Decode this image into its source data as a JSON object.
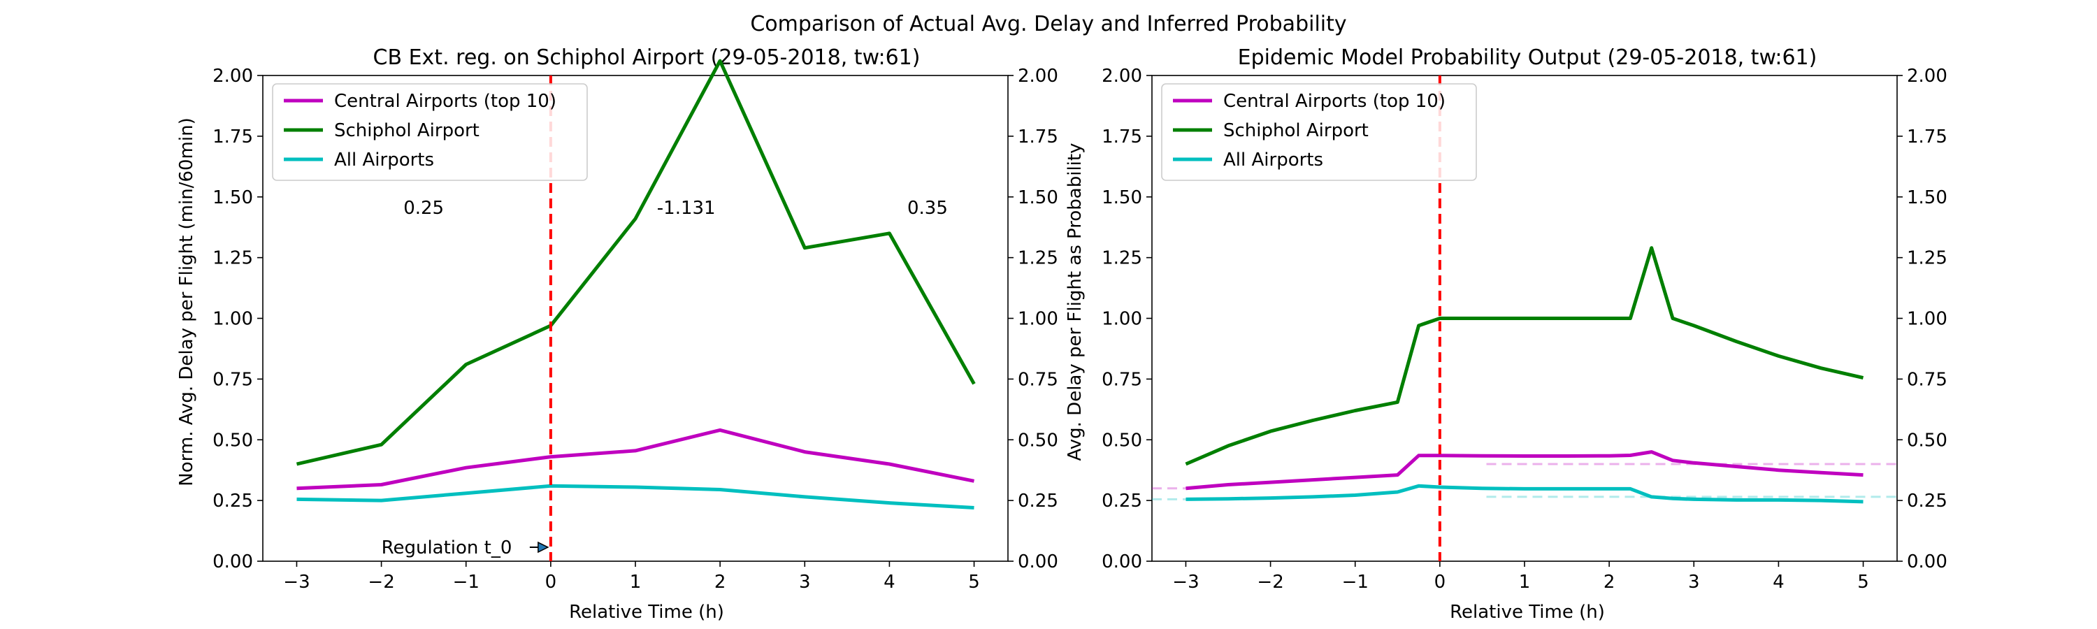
{
  "figure": {
    "suptitle": "Comparison of Actual Avg. Delay and Inferred Probability"
  },
  "colors": {
    "central": "#bf00bf",
    "schiphol": "#007f00",
    "all": "#00bfbf",
    "regulation": "#ff0000"
  },
  "chart_data": [
    {
      "type": "line",
      "title": "CB Ext. reg. on Schiphol Airport (29-05-2018, tw:61)",
      "xlabel": "Relative Time (h)",
      "ylabel": "Norm. Avg. Delay per Flight (min/60min)",
      "xlim": [
        -3.4,
        5.4
      ],
      "ylim": [
        0,
        2
      ],
      "xticks": [
        "−3",
        "−2",
        "−1",
        "0",
        "1",
        "2",
        "3",
        "4",
        "5"
      ],
      "yticks": [
        "0.00",
        "0.25",
        "0.50",
        "0.75",
        "1.00",
        "1.25",
        "1.50",
        "1.75",
        "2.00"
      ],
      "right_yticks": [
        "0.00",
        "0.25",
        "0.50",
        "0.75",
        "1.00",
        "1.25",
        "1.50",
        "1.75",
        "2.00"
      ],
      "grid": false,
      "legend_position": "top-left",
      "vline_x": 0,
      "annotations": [
        {
          "text": "0.25",
          "x": -1.5,
          "y": 1.43
        },
        {
          "text": "-1.131",
          "x": 1.6,
          "y": 1.43
        },
        {
          "text": "0.35",
          "x": 4.45,
          "y": 1.43
        }
      ],
      "arrow": {
        "text": "Regulation t_0",
        "x": 0,
        "y": 0.02,
        "text_x": -2.0,
        "text_y": 0.02
      },
      "series": [
        {
          "name": "Central Airports (top 10)",
          "key": "central",
          "x": [
            -3,
            -2,
            -1,
            0,
            1,
            2,
            3,
            4,
            5
          ],
          "values": [
            0.3,
            0.315,
            0.385,
            0.43,
            0.455,
            0.54,
            0.45,
            0.4,
            0.33
          ]
        },
        {
          "name": "Schiphol Airport",
          "key": "schiphol",
          "x": [
            -3,
            -2,
            -1,
            0,
            1,
            2,
            3,
            4,
            5
          ],
          "values": [
            0.4,
            0.48,
            0.81,
            0.97,
            1.41,
            2.06,
            1.29,
            1.35,
            0.73
          ]
        },
        {
          "name": "All Airports",
          "key": "all",
          "x": [
            -3,
            -2,
            -1,
            0,
            1,
            2,
            3,
            4,
            5
          ],
          "values": [
            0.255,
            0.25,
            0.28,
            0.31,
            0.305,
            0.295,
            0.265,
            0.24,
            0.22
          ]
        }
      ]
    },
    {
      "type": "line",
      "title": "Epidemic Model Probability Output (29-05-2018, tw:61)",
      "xlabel": "Relative Time (h)",
      "ylabel": "Avg. Delay per Flight as Probability",
      "xlim": [
        -3.4,
        5.4
      ],
      "ylim": [
        0,
        2
      ],
      "xticks": [
        "−3",
        "−2",
        "−1",
        "0",
        "1",
        "2",
        "3",
        "4",
        "5"
      ],
      "yticks": [
        "0.00",
        "0.25",
        "0.50",
        "0.75",
        "1.00",
        "1.25",
        "1.50",
        "1.75",
        "2.00"
      ],
      "right_yticks": [
        "0.00",
        "0.25",
        "0.50",
        "0.75",
        "1.00",
        "1.25",
        "1.50",
        "1.75",
        "2.00"
      ],
      "grid": false,
      "legend_position": "top-left",
      "vline_x": 0,
      "reference_lines": [
        {
          "key": "central",
          "segments": [
            {
              "x": [
                -3.4,
                -3.0
              ],
              "y": 0.3
            },
            {
              "x": [
                0.55,
                5.4
              ],
              "y": 0.4
            }
          ]
        },
        {
          "key": "all",
          "segments": [
            {
              "x": [
                -3.4,
                -3.0
              ],
              "y": 0.255
            },
            {
              "x": [
                0.55,
                5.4
              ],
              "y": 0.265
            }
          ]
        }
      ],
      "series": [
        {
          "name": "Central Airports (top 10)",
          "key": "central",
          "x": [
            -3,
            -2.5,
            -2,
            -1.5,
            -1,
            -0.5,
            -0.25,
            0,
            0.5,
            1,
            1.5,
            2,
            2.25,
            2.5,
            2.75,
            3,
            3.5,
            4,
            4.5,
            5
          ],
          "values": [
            0.3,
            0.315,
            0.325,
            0.335,
            0.345,
            0.355,
            0.435,
            0.435,
            0.434,
            0.433,
            0.433,
            0.434,
            0.436,
            0.45,
            0.415,
            0.405,
            0.39,
            0.375,
            0.365,
            0.355
          ]
        },
        {
          "name": "Schiphol Airport",
          "key": "schiphol",
          "x": [
            -3,
            -2.5,
            -2,
            -1.5,
            -1,
            -0.5,
            -0.25,
            0,
            0.5,
            1,
            1.5,
            2,
            2.25,
            2.5,
            2.75,
            3,
            3.5,
            4,
            4.5,
            5
          ],
          "values": [
            0.4,
            0.475,
            0.535,
            0.58,
            0.62,
            0.655,
            0.97,
            1.0,
            1.0,
            1.0,
            1.0,
            1.0,
            1.0,
            1.29,
            1.0,
            0.97,
            0.905,
            0.845,
            0.795,
            0.755
          ]
        },
        {
          "name": "All Airports",
          "key": "all",
          "x": [
            -3,
            -2.5,
            -2,
            -1.5,
            -1,
            -0.5,
            -0.25,
            0,
            0.5,
            1,
            1.5,
            2,
            2.25,
            2.5,
            2.75,
            3,
            3.5,
            4,
            4.5,
            5
          ],
          "values": [
            0.255,
            0.257,
            0.26,
            0.265,
            0.272,
            0.285,
            0.31,
            0.305,
            0.3,
            0.298,
            0.298,
            0.298,
            0.298,
            0.265,
            0.258,
            0.255,
            0.252,
            0.252,
            0.25,
            0.245
          ]
        }
      ]
    }
  ]
}
